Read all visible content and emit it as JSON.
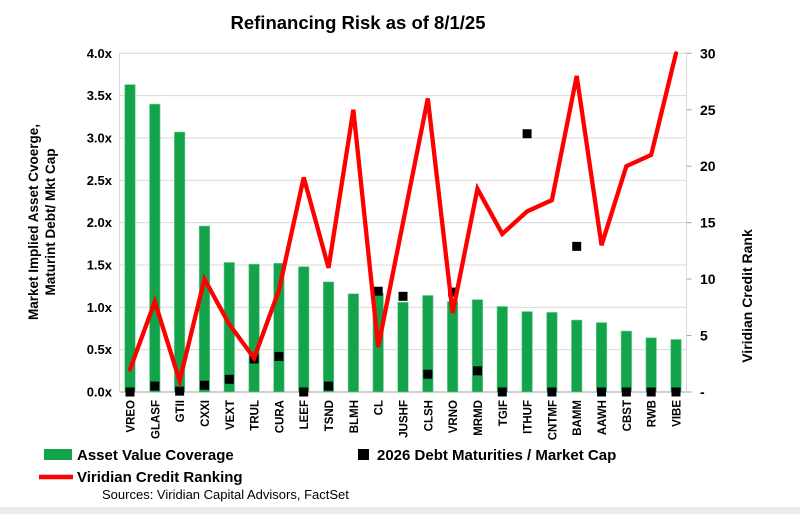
{
  "title": "Refinancing Risk as of 8/1/25",
  "source": "Sources: Viridian Capital Advisors, FactSet",
  "left_axis": {
    "title_line1": "Market Implied Asset Cvoerge,",
    "title_line2": "Maturint Debt/ Mkt Cap",
    "tick_labels": [
      "0.0x",
      "0.5x",
      "1.0x",
      "1.5x",
      "2.0x",
      "2.5x",
      "3.0x",
      "3.5x",
      "4.0x"
    ],
    "min": 0,
    "max": 4
  },
  "right_axis": {
    "title": "Viridian Credit Rank",
    "tick_labels": [
      "-",
      "5",
      "10",
      "15",
      "20",
      "25",
      "30"
    ],
    "min": 0,
    "max": 30
  },
  "legend": {
    "bar_label": "Asset Value Coverage",
    "line_label": "Viridian Credit Ranking",
    "square_label": "2026 Debt Maturities / Market Cap"
  },
  "colors": {
    "bar": "#13a44b",
    "bar_edge": "#6fcd95",
    "line": "#fe0000",
    "square": "#000000",
    "gridline": "#d9d9d9",
    "baseline": "#b3b3b3",
    "tick": "#a6a6a6",
    "text": "#000000"
  },
  "chart_data": {
    "type": "combo",
    "categories": [
      "VREO",
      "GLASF",
      "GTII",
      "CXXI",
      "VEXT",
      "TRUL",
      "CURA",
      "LEEF",
      "TSND",
      "BLMH",
      "CL",
      "JUSHF",
      "CLSH",
      "VRNO",
      "MRMD",
      "TGIF",
      "ITHUF",
      "CNTMF",
      "BAMM",
      "AAWH",
      "CBST",
      "RWB",
      "VIBE"
    ],
    "series": [
      {
        "name": "Asset Value Coverage",
        "type": "bar",
        "axis": "left",
        "values": [
          3.63,
          3.4,
          3.07,
          1.96,
          1.53,
          1.51,
          1.52,
          1.48,
          1.3,
          1.16,
          1.17,
          1.06,
          1.14,
          1.07,
          1.09,
          1.01,
          0.95,
          0.94,
          0.85,
          0.82,
          0.72,
          0.64,
          0.62
        ]
      },
      {
        "name": "2026 Debt Maturities / Market Cap",
        "type": "scatter-square",
        "axis": "left",
        "values": [
          0.0,
          0.07,
          0.01,
          0.08,
          0.15,
          0.39,
          0.42,
          0.0,
          0.07,
          null,
          1.19,
          1.13,
          0.21,
          1.18,
          0.25,
          0.0,
          3.05,
          0.0,
          1.72,
          0.0,
          0.0,
          0.0,
          0.0
        ]
      },
      {
        "name": "Viridian Credit Ranking",
        "type": "line",
        "axis": "right",
        "values": [
          2,
          8,
          1,
          10,
          6,
          3,
          9,
          19,
          11,
          25,
          4,
          15,
          26,
          7,
          18,
          14,
          16,
          17,
          28,
          13,
          20,
          21,
          30
        ]
      }
    ],
    "title": "Refinancing Risk as of 8/1/25",
    "left_ylim": [
      0,
      4
    ],
    "right_ylim": [
      0,
      30
    ],
    "grid": true,
    "legend_position": "bottom"
  }
}
